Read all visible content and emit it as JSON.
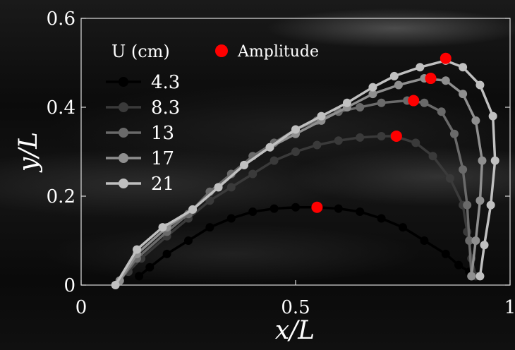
{
  "chart_data": {
    "type": "line",
    "xlabel": "x/L",
    "ylabel": "y/L",
    "xlim": [
      0,
      1
    ],
    "ylim": [
      0,
      0.6
    ],
    "xticks": [
      "0",
      "0.5",
      "1"
    ],
    "yticks": [
      "0",
      "0.2",
      "0.4",
      "0.6"
    ],
    "legend_title": "U (cm)",
    "legend_position": "top-left",
    "amplitude_label": "Amplitude",
    "amplitude_color": "#ff0000",
    "series": [
      {
        "name": "4.3",
        "color": "#000000",
        "x": [
          0.135,
          0.16,
          0.2,
          0.25,
          0.3,
          0.35,
          0.4,
          0.45,
          0.5,
          0.55,
          0.6,
          0.65,
          0.7,
          0.75,
          0.8,
          0.85,
          0.88,
          0.905,
          0.915
        ],
        "y": [
          0.02,
          0.04,
          0.07,
          0.1,
          0.13,
          0.15,
          0.165,
          0.172,
          0.175,
          0.175,
          0.172,
          0.165,
          0.15,
          0.13,
          0.1,
          0.07,
          0.045,
          0.03,
          0.025
        ],
        "amplitude": [
          0.55,
          0.175
        ]
      },
      {
        "name": "8.3",
        "color": "#3a3a3a",
        "x": [
          0.11,
          0.14,
          0.2,
          0.25,
          0.3,
          0.35,
          0.4,
          0.45,
          0.5,
          0.55,
          0.6,
          0.65,
          0.7,
          0.73,
          0.78,
          0.82,
          0.86,
          0.89,
          0.9,
          0.91,
          0.92
        ],
        "y": [
          0.03,
          0.06,
          0.11,
          0.15,
          0.19,
          0.22,
          0.25,
          0.28,
          0.3,
          0.315,
          0.325,
          0.332,
          0.335,
          0.335,
          0.32,
          0.29,
          0.24,
          0.18,
          0.12,
          0.06,
          0.02
        ],
        "amplitude": [
          0.735,
          0.335
        ]
      },
      {
        "name": "13",
        "color": "#6a6a6a",
        "x": [
          0.09,
          0.13,
          0.2,
          0.25,
          0.3,
          0.35,
          0.4,
          0.45,
          0.5,
          0.55,
          0.6,
          0.65,
          0.7,
          0.76,
          0.8,
          0.84,
          0.87,
          0.89,
          0.9,
          0.905,
          0.91
        ],
        "y": [
          0.01,
          0.06,
          0.12,
          0.16,
          0.21,
          0.25,
          0.29,
          0.32,
          0.35,
          0.37,
          0.39,
          0.4,
          0.41,
          0.415,
          0.41,
          0.39,
          0.34,
          0.26,
          0.18,
          0.1,
          0.02
        ],
        "amplitude": [
          0.775,
          0.415
        ]
      },
      {
        "name": "17",
        "color": "#8f8f8f",
        "x": [
          0.09,
          0.13,
          0.2,
          0.26,
          0.32,
          0.38,
          0.44,
          0.5,
          0.56,
          0.62,
          0.68,
          0.74,
          0.8,
          0.85,
          0.89,
          0.92,
          0.935,
          0.93,
          0.92,
          0.91
        ],
        "y": [
          0.01,
          0.07,
          0.13,
          0.17,
          0.22,
          0.27,
          0.31,
          0.34,
          0.37,
          0.4,
          0.43,
          0.45,
          0.465,
          0.46,
          0.43,
          0.37,
          0.28,
          0.19,
          0.1,
          0.02
        ],
        "amplitude": [
          0.815,
          0.465
        ]
      },
      {
        "name": "21",
        "color": "#c0c0c0",
        "x": [
          0.08,
          0.13,
          0.19,
          0.26,
          0.32,
          0.38,
          0.44,
          0.5,
          0.56,
          0.62,
          0.68,
          0.73,
          0.79,
          0.85,
          0.89,
          0.93,
          0.96,
          0.965,
          0.955,
          0.94,
          0.93
        ],
        "y": [
          0.0,
          0.08,
          0.13,
          0.17,
          0.22,
          0.27,
          0.31,
          0.35,
          0.38,
          0.41,
          0.445,
          0.47,
          0.49,
          0.505,
          0.49,
          0.45,
          0.38,
          0.28,
          0.18,
          0.09,
          0.02
        ],
        "amplitude": [
          0.85,
          0.51
        ]
      }
    ]
  }
}
